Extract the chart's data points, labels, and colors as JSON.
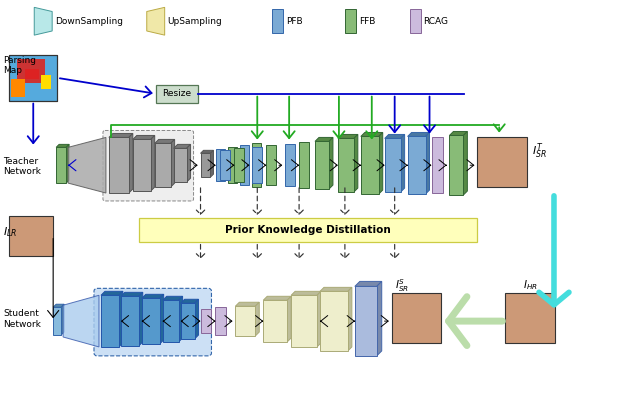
{
  "bg_color": "#ffffff",
  "legend": {
    "items": [
      "DownSampling",
      "UpSampling",
      "PFB",
      "FFB",
      "RCAG"
    ],
    "colors": [
      "#b8e8e8",
      "#f0e8a8",
      "#7baad4",
      "#88bb77",
      "#ccbbdd"
    ],
    "edge_colors": [
      "#449999",
      "#bbaa44",
      "#3366aa",
      "#336633",
      "#886699"
    ]
  }
}
